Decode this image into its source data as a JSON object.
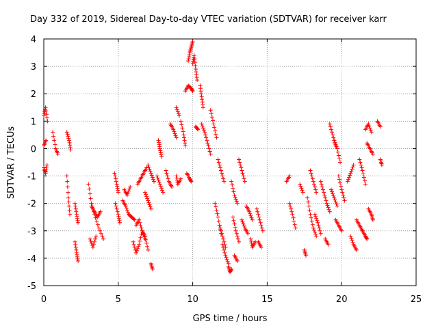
{
  "chart_data": {
    "type": "scatter",
    "title": "Day 332 of 2019, Sidereal Day-to-day VTEC variation (SDTVAR) for receiver karr",
    "xlabel": "GPS time / hours",
    "ylabel": "SDTVAR / TECUs",
    "xlim": [
      0,
      25
    ],
    "ylim": [
      -5,
      4
    ],
    "xticks": [
      "0",
      "5",
      "10",
      "15",
      "20",
      "25"
    ],
    "yticks": [
      "4",
      "3",
      "2",
      "1",
      "0",
      "-1",
      "-2",
      "-3",
      "-4",
      "-5"
    ],
    "grid": true,
    "marker": "+",
    "color": "#ff0000",
    "tracks": [
      {
        "x": [
          0.0,
          0.12,
          0.25
        ],
        "y": [
          1.2,
          1.5,
          1.0
        ]
      },
      {
        "x": [
          0.0,
          0.15
        ],
        "y": [
          0.1,
          0.3
        ]
      },
      {
        "x": [
          0.0,
          0.12,
          0.22
        ],
        "y": [
          -0.7,
          -0.9,
          -0.6
        ]
      },
      {
        "x": [
          0.6,
          0.8,
          0.95
        ],
        "y": [
          0.6,
          0.0,
          -0.2
        ]
      },
      {
        "x": [
          1.55,
          1.7,
          1.8
        ],
        "y": [
          0.6,
          0.3,
          -0.05
        ]
      },
      {
        "x": [
          1.55,
          1.65,
          1.75
        ],
        "y": [
          -1.0,
          -1.8,
          -2.4
        ]
      },
      {
        "x": [
          2.1,
          2.2,
          2.3
        ],
        "y": [
          -2.0,
          -2.4,
          -2.7
        ]
      },
      {
        "x": [
          2.1,
          2.2,
          2.3
        ],
        "y": [
          -3.4,
          -3.8,
          -4.1
        ]
      },
      {
        "x": [
          3.0,
          3.2,
          3.4,
          3.7,
          4.0
        ],
        "y": [
          -1.3,
          -2.0,
          -2.4,
          -2.9,
          -3.3
        ]
      },
      {
        "x": [
          3.2,
          3.4,
          3.6,
          3.8
        ],
        "y": [
          -2.1,
          -2.3,
          -2.5,
          -2.3
        ]
      },
      {
        "x": [
          3.1,
          3.3,
          3.5
        ],
        "y": [
          -3.3,
          -3.6,
          -3.2
        ]
      },
      {
        "x": [
          4.75,
          4.9,
          5.0
        ],
        "y": [
          -0.9,
          -1.3,
          -1.6
        ]
      },
      {
        "x": [
          4.8,
          5.0,
          5.1
        ],
        "y": [
          -2.0,
          -2.4,
          -2.7
        ]
      },
      {
        "x": [
          5.3,
          5.5,
          5.7,
          5.9,
          6.1
        ],
        "y": [
          -1.9,
          -2.1,
          -2.4,
          -2.5,
          -2.6
        ]
      },
      {
        "x": [
          5.4,
          5.6,
          5.8
        ],
        "y": [
          -1.5,
          -1.7,
          -1.4
        ]
      },
      {
        "x": [
          6.0,
          6.2,
          6.4,
          6.6,
          6.8,
          7.0
        ],
        "y": [
          -3.4,
          -3.8,
          -3.5,
          -3.0,
          -3.2,
          -3.7
        ]
      },
      {
        "x": [
          6.2,
          6.4,
          6.6,
          6.8
        ],
        "y": [
          -2.8,
          -2.6,
          -3.0,
          -3.3
        ]
      },
      {
        "x": [
          6.3,
          6.5,
          6.7,
          6.9
        ],
        "y": [
          -1.3,
          -1.1,
          -0.9,
          -0.7
        ]
      },
      {
        "x": [
          6.8,
          7.0,
          7.2
        ],
        "y": [
          -1.6,
          -1.9,
          -2.2
        ]
      },
      {
        "x": [
          7.0,
          7.2,
          7.4
        ],
        "y": [
          -0.6,
          -0.9,
          -1.2
        ]
      },
      {
        "x": [
          7.2,
          7.3
        ],
        "y": [
          -4.2,
          -4.4
        ]
      },
      {
        "x": [
          7.6,
          7.8,
          8.0
        ],
        "y": [
          -1.0,
          -1.3,
          -1.6
        ]
      },
      {
        "x": [
          7.7,
          7.8,
          7.9
        ],
        "y": [
          0.3,
          0.0,
          -0.3
        ]
      },
      {
        "x": [
          8.2,
          8.4,
          8.6
        ],
        "y": [
          -0.8,
          -1.2,
          -1.4
        ]
      },
      {
        "x": [
          8.5,
          8.7,
          8.9
        ],
        "y": [
          0.9,
          0.7,
          0.4
        ]
      },
      {
        "x": [
          8.9,
          9.0,
          9.2
        ],
        "y": [
          -1.0,
          -1.3,
          -1.1
        ]
      },
      {
        "x": [
          8.9,
          9.1
        ],
        "y": [
          1.5,
          1.2
        ]
      },
      {
        "x": [
          9.2,
          9.4,
          9.5
        ],
        "y": [
          1.0,
          0.5,
          0.1
        ]
      },
      {
        "x": [
          9.5,
          9.7,
          9.9,
          10.0
        ],
        "y": [
          2.1,
          2.3,
          2.2,
          2.1
        ]
      },
      {
        "x": [
          9.6,
          9.8,
          9.9
        ],
        "y": [
          -0.9,
          -1.1,
          -1.2
        ]
      },
      {
        "x": [
          9.7,
          9.8,
          9.9,
          10.0
        ],
        "y": [
          3.2,
          3.5,
          3.7,
          3.9
        ]
      },
      {
        "x": [
          10.0,
          10.1,
          10.2,
          10.3
        ],
        "y": [
          3.1,
          3.4,
          2.9,
          2.5
        ]
      },
      {
        "x": [
          10.2,
          10.35
        ],
        "y": [
          0.8,
          0.7
        ]
      },
      {
        "x": [
          10.5,
          10.6,
          10.7
        ],
        "y": [
          2.3,
          1.9,
          1.5
        ]
      },
      {
        "x": [
          10.6,
          10.8,
          11.0,
          11.2
        ],
        "y": [
          0.9,
          0.6,
          0.2,
          -0.2
        ]
      },
      {
        "x": [
          11.2,
          11.4,
          11.6
        ],
        "y": [
          1.4,
          0.9,
          0.4
        ]
      },
      {
        "x": [
          11.5,
          11.7,
          11.9
        ],
        "y": [
          -2.0,
          -2.5,
          -3.1
        ]
      },
      {
        "x": [
          11.7,
          11.9,
          12.1
        ],
        "y": [
          -0.4,
          -0.8,
          -1.2
        ]
      },
      {
        "x": [
          11.8,
          12.0,
          12.2
        ],
        "y": [
          -2.8,
          -3.2,
          -3.6
        ]
      },
      {
        "x": [
          12.0,
          12.2,
          12.4
        ],
        "y": [
          -3.5,
          -3.9,
          -4.2
        ]
      },
      {
        "x": [
          12.4,
          12.5,
          12.6
        ],
        "y": [
          -4.3,
          -4.5,
          -4.4
        ]
      },
      {
        "x": [
          12.6,
          12.8,
          13.0
        ],
        "y": [
          -1.2,
          -1.7,
          -2.0
        ]
      },
      {
        "x": [
          12.7,
          12.9,
          13.1
        ],
        "y": [
          -2.5,
          -3.0,
          -3.4
        ]
      },
      {
        "x": [
          12.8,
          13.0
        ],
        "y": [
          -3.9,
          -4.1
        ]
      },
      {
        "x": [
          13.1,
          13.3,
          13.5
        ],
        "y": [
          -0.4,
          -0.8,
          -1.2
        ]
      },
      {
        "x": [
          13.3,
          13.5,
          13.7
        ],
        "y": [
          -2.6,
          -2.9,
          -3.1
        ]
      },
      {
        "x": [
          13.6,
          13.8,
          14.0
        ],
        "y": [
          -2.1,
          -2.3,
          -2.6
        ]
      },
      {
        "x": [
          13.9,
          14.0,
          14.2
        ],
        "y": [
          -3.3,
          -3.6,
          -3.4
        ]
      },
      {
        "x": [
          14.3,
          14.5,
          14.7
        ],
        "y": [
          -2.2,
          -2.6,
          -3.0
        ]
      },
      {
        "x": [
          14.4,
          14.6
        ],
        "y": [
          -3.4,
          -3.6
        ]
      },
      {
        "x": [
          16.3,
          16.5
        ],
        "y": [
          -1.2,
          -1.0
        ]
      },
      {
        "x": [
          16.5,
          16.7,
          16.9
        ],
        "y": [
          -2.0,
          -2.4,
          -2.9
        ]
      },
      {
        "x": [
          17.2,
          17.4
        ],
        "y": [
          -1.3,
          -1.6
        ]
      },
      {
        "x": [
          17.5,
          17.6
        ],
        "y": [
          -3.7,
          -3.9
        ]
      },
      {
        "x": [
          17.7,
          17.9,
          18.1,
          18.3
        ],
        "y": [
          -1.8,
          -2.4,
          -2.9,
          -3.2
        ]
      },
      {
        "x": [
          17.9,
          18.1,
          18.3
        ],
        "y": [
          -0.8,
          -1.2,
          -1.6
        ]
      },
      {
        "x": [
          18.2,
          18.4,
          18.6
        ],
        "y": [
          -2.4,
          -2.7,
          -3.1
        ]
      },
      {
        "x": [
          18.6,
          18.8,
          19.0,
          19.2
        ],
        "y": [
          -1.2,
          -1.6,
          -2.0,
          -2.3
        ]
      },
      {
        "x": [
          18.9,
          19.1
        ],
        "y": [
          -3.3,
          -3.5
        ]
      },
      {
        "x": [
          19.2,
          19.4,
          19.6
        ],
        "y": [
          0.9,
          0.5,
          0.1
        ]
      },
      {
        "x": [
          19.3,
          19.5,
          19.7
        ],
        "y": [
          -1.5,
          -1.8,
          -2.1
        ]
      },
      {
        "x": [
          19.5,
          19.7,
          19.9
        ],
        "y": [
          0.3,
          0.0,
          -0.5
        ]
      },
      {
        "x": [
          19.6,
          19.8,
          20.0
        ],
        "y": [
          -2.6,
          -2.8,
          -3.0
        ]
      },
      {
        "x": [
          19.8,
          20.0,
          20.2
        ],
        "y": [
          -1.0,
          -1.5,
          -1.9
        ]
      },
      {
        "x": [
          20.4,
          20.6,
          20.8
        ],
        "y": [
          -1.2,
          -0.9,
          -0.6
        ]
      },
      {
        "x": [
          20.6,
          20.8,
          21.0
        ],
        "y": [
          -3.2,
          -3.5,
          -3.7
        ]
      },
      {
        "x": [
          21.0,
          21.2,
          21.4
        ],
        "y": [
          -2.6,
          -2.8,
          -3.0
        ]
      },
      {
        "x": [
          21.2,
          21.4,
          21.6
        ],
        "y": [
          -0.4,
          -0.8,
          -1.3
        ]
      },
      {
        "x": [
          21.4,
          21.6,
          21.7
        ],
        "y": [
          -3.0,
          -3.2,
          -3.3
        ]
      },
      {
        "x": [
          21.6,
          21.8,
          22.0
        ],
        "y": [
          0.7,
          0.9,
          0.6
        ]
      },
      {
        "x": [
          21.7,
          21.9,
          22.1
        ],
        "y": [
          0.2,
          0.0,
          -0.2
        ]
      },
      {
        "x": [
          21.8,
          22.0,
          22.1
        ],
        "y": [
          -2.2,
          -2.4,
          -2.6
        ]
      },
      {
        "x": [
          22.4,
          22.6
        ],
        "y": [
          1.0,
          0.8
        ]
      },
      {
        "x": [
          22.6,
          22.7
        ],
        "y": [
          -0.4,
          -0.6
        ]
      }
    ]
  }
}
